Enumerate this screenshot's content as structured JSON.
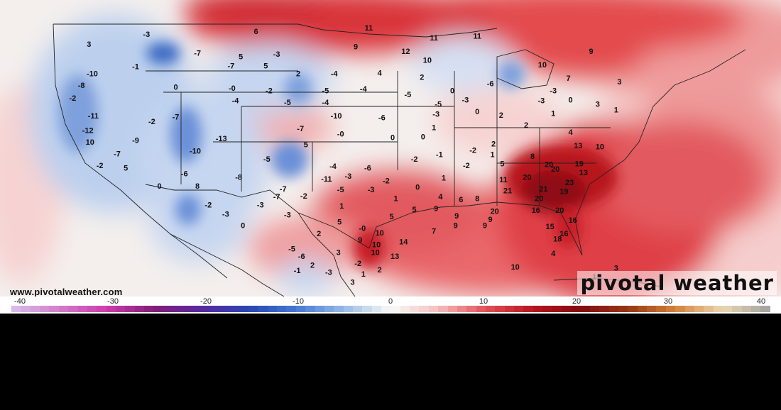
{
  "map": {
    "source_url": "www.pivotalweather.com",
    "brand": "pivotal weather",
    "colors": {
      "warm_core": "#8e0a12",
      "warm": "#d6232f",
      "cool": "#3e6cc4",
      "cool_core": "#1f3f9e"
    },
    "anomaly_labels": [
      {
        "text": "-3",
        "lon": -116.5,
        "lat": 48.9
      },
      {
        "text": "6",
        "lon": -106.4,
        "lat": 49.2
      },
      {
        "text": "11",
        "lon": -96.0,
        "lat": 49.6
      },
      {
        "text": "11",
        "lon": -90.0,
        "lat": 48.5
      },
      {
        "text": "11",
        "lon": -86.0,
        "lat": 48.7
      },
      {
        "text": "3",
        "lon": -121.8,
        "lat": 47.8
      },
      {
        "text": "-7",
        "lon": -111.8,
        "lat": 46.8
      },
      {
        "text": "5",
        "lon": -107.8,
        "lat": 46.4
      },
      {
        "text": "-3",
        "lon": -104.5,
        "lat": 46.7
      },
      {
        "text": "9",
        "lon": -97.2,
        "lat": 47.5
      },
      {
        "text": "12",
        "lon": -92.6,
        "lat": 47.0
      },
      {
        "text": "10",
        "lon": -90.6,
        "lat": 46.0
      },
      {
        "text": "10",
        "lon": -80.0,
        "lat": 45.5
      },
      {
        "text": "9",
        "lon": -75.5,
        "lat": 47.0
      },
      {
        "text": "-1",
        "lon": -117.5,
        "lat": 45.3
      },
      {
        "text": "-7",
        "lon": -108.7,
        "lat": 45.4
      },
      {
        "text": "5",
        "lon": -105.5,
        "lat": 45.4
      },
      {
        "text": "2",
        "lon": -102.5,
        "lat": 44.5
      },
      {
        "text": "-4",
        "lon": -99.2,
        "lat": 44.5
      },
      {
        "text": "4",
        "lon": -95.0,
        "lat": 44.6
      },
      {
        "text": "2",
        "lon": -91.1,
        "lat": 44.1
      },
      {
        "text": "7",
        "lon": -77.6,
        "lat": 44.0
      },
      {
        "text": "-10",
        "lon": -121.5,
        "lat": 44.5
      },
      {
        "text": "0",
        "lon": -113.8,
        "lat": 43.0
      },
      {
        "text": "-0",
        "lon": -108.6,
        "lat": 42.9
      },
      {
        "text": "-2",
        "lon": -105.2,
        "lat": 42.6
      },
      {
        "text": "-5",
        "lon": -100.0,
        "lat": 42.6
      },
      {
        "text": "-4",
        "lon": -96.5,
        "lat": 42.8
      },
      {
        "text": "-5",
        "lon": -92.4,
        "lat": 42.2
      },
      {
        "text": "0",
        "lon": -88.3,
        "lat": 42.6
      },
      {
        "text": "-6",
        "lon": -84.8,
        "lat": 43.4
      },
      {
        "text": "-3",
        "lon": -79.0,
        "lat": 42.6
      },
      {
        "text": "3",
        "lon": -72.9,
        "lat": 43.6
      },
      {
        "text": "-8",
        "lon": -122.5,
        "lat": 43.2
      },
      {
        "text": "-2",
        "lon": -123.3,
        "lat": 41.8
      },
      {
        "text": "-4",
        "lon": -108.3,
        "lat": 41.5
      },
      {
        "text": "-5",
        "lon": -103.5,
        "lat": 41.3
      },
      {
        "text": "-4",
        "lon": -100.0,
        "lat": 41.3
      },
      {
        "text": "-5",
        "lon": -89.6,
        "lat": 41.1
      },
      {
        "text": "-3",
        "lon": -87.1,
        "lat": 41.6
      },
      {
        "text": "-3",
        "lon": -80.1,
        "lat": 41.5
      },
      {
        "text": "0",
        "lon": -77.4,
        "lat": 41.6
      },
      {
        "text": "3",
        "lon": -74.9,
        "lat": 41.1
      },
      {
        "text": "-11",
        "lon": -121.4,
        "lat": 39.8
      },
      {
        "text": "-7",
        "lon": -113.8,
        "lat": 39.7
      },
      {
        "text": "-2",
        "lon": -116.0,
        "lat": 39.2
      },
      {
        "text": "-10",
        "lon": -99.0,
        "lat": 39.8
      },
      {
        "text": "-6",
        "lon": -94.8,
        "lat": 39.6
      },
      {
        "text": "-3",
        "lon": -89.8,
        "lat": 40.0
      },
      {
        "text": "0",
        "lon": -86.0,
        "lat": 40.3
      },
      {
        "text": "2",
        "lon": -83.8,
        "lat": 39.9
      },
      {
        "text": "1",
        "lon": -79.0,
        "lat": 40.1
      },
      {
        "text": "1",
        "lon": -73.2,
        "lat": 40.5
      },
      {
        "text": "-12",
        "lon": -121.9,
        "lat": 38.2
      },
      {
        "text": "-7",
        "lon": -102.3,
        "lat": 38.4
      },
      {
        "text": "-0",
        "lon": -98.6,
        "lat": 37.8
      },
      {
        "text": "0",
        "lon": -93.8,
        "lat": 37.4
      },
      {
        "text": "0",
        "lon": -91.0,
        "lat": 37.5
      },
      {
        "text": "1",
        "lon": -90.0,
        "lat": 38.5
      },
      {
        "text": "2",
        "lon": -81.5,
        "lat": 38.8
      },
      {
        "text": "4",
        "lon": -77.4,
        "lat": 38.0
      },
      {
        "text": "10",
        "lon": -121.7,
        "lat": 36.9
      },
      {
        "text": "-9",
        "lon": -117.5,
        "lat": 37.1
      },
      {
        "text": "-13",
        "lon": -109.6,
        "lat": 37.3
      },
      {
        "text": "5",
        "lon": -101.8,
        "lat": 36.6
      },
      {
        "text": "-2",
        "lon": -86.4,
        "lat": 36.0
      },
      {
        "text": "2",
        "lon": -84.5,
        "lat": 36.7
      },
      {
        "text": "13",
        "lon": -76.7,
        "lat": 36.5
      },
      {
        "text": "10",
        "lon": -74.7,
        "lat": 36.4
      },
      {
        "text": "-7",
        "lon": -119.2,
        "lat": 35.6
      },
      {
        "text": "-10",
        "lon": -112.0,
        "lat": 35.9
      },
      {
        "text": "-5",
        "lon": -105.4,
        "lat": 35.0
      },
      {
        "text": "-2",
        "lon": -91.8,
        "lat": 35.0
      },
      {
        "text": "-1",
        "lon": -89.5,
        "lat": 35.5
      },
      {
        "text": "1",
        "lon": -84.6,
        "lat": 35.5
      },
      {
        "text": "8",
        "lon": -80.9,
        "lat": 35.3
      },
      {
        "text": "20",
        "lon": -79.4,
        "lat": 34.4
      },
      {
        "text": "19",
        "lon": -76.6,
        "lat": 34.5
      },
      {
        "text": "-2",
        "lon": -120.8,
        "lat": 34.3
      },
      {
        "text": "5",
        "lon": -118.4,
        "lat": 34.0
      },
      {
        "text": "-4",
        "lon": -99.3,
        "lat": 34.2
      },
      {
        "text": "-6",
        "lon": -96.1,
        "lat": 34.0
      },
      {
        "text": "-2",
        "lon": -87.0,
        "lat": 34.3
      },
      {
        "text": "5",
        "lon": -83.7,
        "lat": 34.5
      },
      {
        "text": "20",
        "lon": -78.8,
        "lat": 33.9
      },
      {
        "text": "13",
        "lon": -76.2,
        "lat": 33.5
      },
      {
        "text": "-6",
        "lon": -113.0,
        "lat": 33.4
      },
      {
        "text": "-8",
        "lon": -108.0,
        "lat": 33.0
      },
      {
        "text": "-11",
        "lon": -99.9,
        "lat": 32.8
      },
      {
        "text": "-3",
        "lon": -97.9,
        "lat": 33.1
      },
      {
        "text": "-2",
        "lon": -94.4,
        "lat": 32.6
      },
      {
        "text": "1",
        "lon": -89.1,
        "lat": 32.9
      },
      {
        "text": "11",
        "lon": -83.6,
        "lat": 32.7
      },
      {
        "text": "20",
        "lon": -81.4,
        "lat": 33.0
      },
      {
        "text": "23",
        "lon": -77.5,
        "lat": 32.4
      },
      {
        "text": "0",
        "lon": -115.3,
        "lat": 32.0
      },
      {
        "text": "8",
        "lon": -111.8,
        "lat": 32.0
      },
      {
        "text": "-7",
        "lon": -103.9,
        "lat": 31.7
      },
      {
        "text": "-5",
        "lon": -98.6,
        "lat": 31.6
      },
      {
        "text": "-3",
        "lon": -95.8,
        "lat": 31.6
      },
      {
        "text": "0",
        "lon": -91.5,
        "lat": 31.9
      },
      {
        "text": "21",
        "lon": -83.2,
        "lat": 31.5
      },
      {
        "text": "21",
        "lon": -79.9,
        "lat": 31.7
      },
      {
        "text": "19",
        "lon": -78.0,
        "lat": 31.4
      },
      {
        "text": "-7",
        "lon": -104.5,
        "lat": 30.8
      },
      {
        "text": "-2",
        "lon": -102.0,
        "lat": 30.9
      },
      {
        "text": "1",
        "lon": -93.5,
        "lat": 30.6
      },
      {
        "text": "4",
        "lon": -89.4,
        "lat": 30.8
      },
      {
        "text": "6",
        "lon": -87.5,
        "lat": 30.5
      },
      {
        "text": "8",
        "lon": -86.0,
        "lat": 30.6
      },
      {
        "text": "20",
        "lon": -80.3,
        "lat": 30.6
      },
      {
        "text": "-2",
        "lon": -110.8,
        "lat": 29.9
      },
      {
        "text": "-3",
        "lon": -106.0,
        "lat": 29.9
      },
      {
        "text": "1",
        "lon": -98.5,
        "lat": 29.8
      },
      {
        "text": "5",
        "lon": -91.8,
        "lat": 29.4
      },
      {
        "text": "9",
        "lon": -89.8,
        "lat": 29.5
      },
      {
        "text": "20",
        "lon": -84.4,
        "lat": 29.2
      },
      {
        "text": "16",
        "lon": -80.6,
        "lat": 29.3
      },
      {
        "text": "20",
        "lon": -78.4,
        "lat": 29.3
      },
      {
        "text": "-3",
        "lon": -109.2,
        "lat": 28.9
      },
      {
        "text": "-3",
        "lon": -103.5,
        "lat": 28.8
      },
      {
        "text": "5",
        "lon": -98.7,
        "lat": 28.0
      },
      {
        "text": "5",
        "lon": -93.9,
        "lat": 28.6
      },
      {
        "text": "9",
        "lon": -87.9,
        "lat": 28.7
      },
      {
        "text": "9",
        "lon": -84.8,
        "lat": 28.3
      },
      {
        "text": "16",
        "lon": -77.2,
        "lat": 28.2
      },
      {
        "text": "0",
        "lon": -107.6,
        "lat": 27.6
      },
      {
        "text": "-0",
        "lon": -96.6,
        "lat": 27.3
      },
      {
        "text": "10",
        "lon": -95.0,
        "lat": 26.8
      },
      {
        "text": "7",
        "lon": -90.0,
        "lat": 27.0
      },
      {
        "text": "9",
        "lon": -88.0,
        "lat": 27.6
      },
      {
        "text": "9",
        "lon": -85.3,
        "lat": 27.6
      },
      {
        "text": "15",
        "lon": -79.3,
        "lat": 27.5
      },
      {
        "text": "16",
        "lon": -78.0,
        "lat": 26.7
      },
      {
        "text": "2",
        "lon": -100.6,
        "lat": 26.7
      },
      {
        "text": "9",
        "lon": -96.8,
        "lat": 26.0
      },
      {
        "text": "10",
        "lon": -95.3,
        "lat": 25.5
      },
      {
        "text": "14",
        "lon": -92.8,
        "lat": 25.8
      },
      {
        "text": "18",
        "lon": -78.6,
        "lat": 26.1
      },
      {
        "text": "-5",
        "lon": -103.1,
        "lat": 25.0
      },
      {
        "text": "3",
        "lon": -98.8,
        "lat": 24.6
      },
      {
        "text": "10",
        "lon": -95.4,
        "lat": 24.6
      },
      {
        "text": "13",
        "lon": -93.6,
        "lat": 24.2
      },
      {
        "text": "-6",
        "lon": -102.2,
        "lat": 24.2
      },
      {
        "text": "2",
        "lon": -101.2,
        "lat": 23.2
      },
      {
        "text": "-2",
        "lon": -97.0,
        "lat": 23.4
      },
      {
        "text": "2",
        "lon": -95.0,
        "lat": 22.7
      },
      {
        "text": "-1",
        "lon": -102.6,
        "lat": 22.6
      },
      {
        "text": "-3",
        "lon": -99.7,
        "lat": 22.4
      },
      {
        "text": "1",
        "lon": -96.5,
        "lat": 22.2
      },
      {
        "text": "3",
        "lon": -97.5,
        "lat": 21.3
      },
      {
        "text": "10",
        "lon": -82.5,
        "lat": 23.0
      },
      {
        "text": "4",
        "lon": -79.0,
        "lat": 24.5
      },
      {
        "text": "3",
        "lon": -73.2,
        "lat": 22.9
      },
      {
        "text": "1",
        "lon": -75.2,
        "lat": 21.9
      }
    ]
  },
  "chart_data": {
    "type": "heatmap",
    "colorbar": {
      "ticks": [
        "-40",
        "-30",
        "-20",
        "-10",
        "0",
        "10",
        "20",
        "30",
        "40"
      ],
      "range": [
        -40,
        40
      ]
    }
  }
}
